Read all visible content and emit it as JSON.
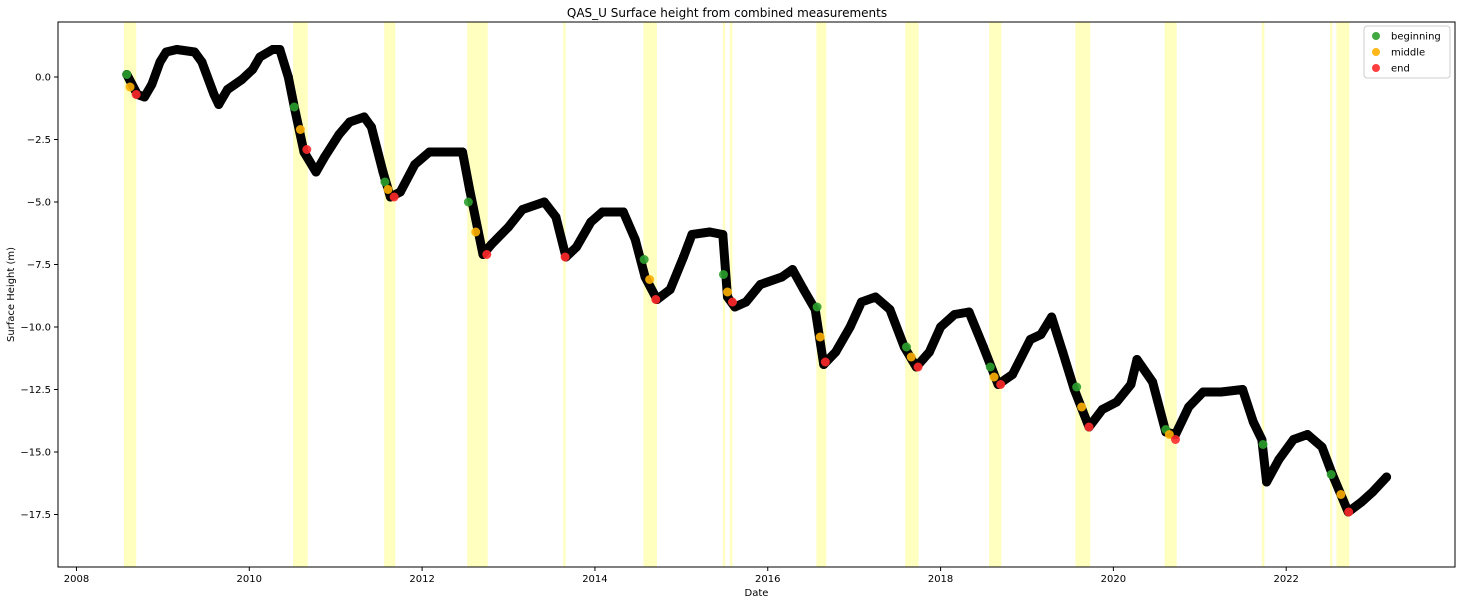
{
  "chart_data": {
    "type": "scatter",
    "title": "QAS_U Surface height from combined measurements",
    "xlabel": "Date",
    "ylabel": "Surface Height (m)",
    "xlim": [
      "2007-10-15",
      "2023-12-15"
    ],
    "ylim": [
      -19.6,
      2.2
    ],
    "x_ticks": [
      "2008",
      "2010",
      "2012",
      "2014",
      "2016",
      "2018",
      "2020",
      "2022"
    ],
    "y_ticks": [
      0.0,
      -2.5,
      -5.0,
      -7.5,
      -10.0,
      -12.5,
      -15.0,
      -17.5
    ],
    "y_tick_labels": [
      "0.0",
      "−2.5",
      "−5.0",
      "−7.5",
      "−10.0",
      "−12.5",
      "−15.0",
      "−17.5"
    ],
    "grid": false,
    "legend_position": "top-right",
    "legend": [
      {
        "name": "beginning",
        "color": "#2ca02c"
      },
      {
        "name": "middle",
        "color": "#ffb000"
      },
      {
        "name": "end",
        "color": "#ff2a2a"
      }
    ],
    "colors": {
      "measurements": "#000000",
      "melt_season_band": "#ffffc0",
      "beginning": "#2ca02c",
      "middle": "#ffb000",
      "end": "#ff2a2a"
    },
    "melt_season_bands": [
      [
        "2008-07-20",
        "2008-09-10"
      ],
      [
        "2010-07-05",
        "2010-09-05"
      ],
      [
        "2011-07-25",
        "2011-09-10"
      ],
      [
        "2012-07-10",
        "2012-10-05"
      ],
      [
        "2013-08-20",
        "2013-08-30"
      ],
      [
        "2014-07-25",
        "2014-09-20"
      ],
      [
        "2015-06-25",
        "2015-07-05"
      ],
      [
        "2015-07-25",
        "2015-08-05"
      ],
      [
        "2016-07-25",
        "2016-09-05"
      ],
      [
        "2017-08-05",
        "2017-09-30"
      ],
      [
        "2018-07-25",
        "2018-09-15"
      ],
      [
        "2019-07-25",
        "2019-09-25"
      ],
      [
        "2020-08-05",
        "2020-09-25"
      ],
      [
        "2021-09-20",
        "2021-10-01"
      ],
      [
        "2022-07-05",
        "2022-07-15"
      ],
      [
        "2022-08-01",
        "2022-09-25"
      ]
    ],
    "series": [
      {
        "name": "measurements",
        "points": [
          [
            "2008-08-01",
            0.1
          ],
          [
            "2008-09-15",
            -0.7
          ],
          [
            "2008-10-15",
            -0.8
          ],
          [
            "2008-11-15",
            -0.3
          ],
          [
            "2008-12-20",
            0.6
          ],
          [
            "2009-01-15",
            1.0
          ],
          [
            "2009-03-01",
            1.1
          ],
          [
            "2009-05-15",
            1.0
          ],
          [
            "2009-06-15",
            0.6
          ],
          [
            "2009-08-05",
            -0.7
          ],
          [
            "2009-08-25",
            -1.1
          ],
          [
            "2009-10-01",
            -0.5
          ],
          [
            "2009-12-01",
            -0.1
          ],
          [
            "2010-01-15",
            0.3
          ],
          [
            "2010-02-15",
            0.8
          ],
          [
            "2010-04-10",
            1.1
          ],
          [
            "2010-05-10",
            1.1
          ],
          [
            "2010-06-15",
            0.0
          ],
          [
            "2010-07-10",
            -1.2
          ],
          [
            "2010-08-20",
            -3.0
          ],
          [
            "2010-10-10",
            -3.8
          ],
          [
            "2010-11-15",
            -3.2
          ],
          [
            "2011-01-15",
            -2.3
          ],
          [
            "2011-03-01",
            -1.8
          ],
          [
            "2011-05-01",
            -1.6
          ],
          [
            "2011-06-01",
            -2.0
          ],
          [
            "2011-07-20",
            -3.8
          ],
          [
            "2011-08-20",
            -4.8
          ],
          [
            "2011-10-01",
            -4.6
          ],
          [
            "2011-12-01",
            -3.5
          ],
          [
            "2012-02-01",
            -3.0
          ],
          [
            "2012-05-01",
            -3.0
          ],
          [
            "2012-06-20",
            -3.0
          ],
          [
            "2012-07-20",
            -4.5
          ],
          [
            "2012-09-15",
            -7.1
          ],
          [
            "2012-10-20",
            -6.7
          ],
          [
            "2013-01-01",
            -6.0
          ],
          [
            "2013-03-01",
            -5.3
          ],
          [
            "2013-06-01",
            -5.0
          ],
          [
            "2013-07-20",
            -5.6
          ],
          [
            "2013-09-01",
            -7.2
          ],
          [
            "2013-10-15",
            -6.8
          ],
          [
            "2013-12-15",
            -5.8
          ],
          [
            "2014-02-01",
            -5.4
          ],
          [
            "2014-05-01",
            -5.4
          ],
          [
            "2014-06-20",
            -6.5
          ],
          [
            "2014-08-01",
            -8.0
          ],
          [
            "2014-09-20",
            -8.9
          ],
          [
            "2014-11-15",
            -8.5
          ],
          [
            "2015-01-10",
            -7.2
          ],
          [
            "2015-02-15",
            -6.3
          ],
          [
            "2015-05-01",
            -6.2
          ],
          [
            "2015-06-25",
            -6.3
          ],
          [
            "2015-07-15",
            -8.8
          ],
          [
            "2015-08-15",
            -9.2
          ],
          [
            "2015-10-01",
            -9.0
          ],
          [
            "2015-12-01",
            -8.3
          ],
          [
            "2016-03-01",
            -8.0
          ],
          [
            "2016-04-15",
            -7.7
          ],
          [
            "2016-06-01",
            -8.5
          ],
          [
            "2016-07-20",
            -9.3
          ],
          [
            "2016-08-25",
            -11.5
          ],
          [
            "2016-10-15",
            -11.0
          ],
          [
            "2016-12-15",
            -10.0
          ],
          [
            "2017-02-01",
            -9.0
          ],
          [
            "2017-04-01",
            -8.8
          ],
          [
            "2017-06-01",
            -9.3
          ],
          [
            "2017-08-01",
            -10.8
          ],
          [
            "2017-09-20",
            -11.6
          ],
          [
            "2017-11-15",
            -11.0
          ],
          [
            "2018-01-01",
            -10.0
          ],
          [
            "2018-03-01",
            -9.5
          ],
          [
            "2018-05-01",
            -9.4
          ],
          [
            "2018-07-01",
            -10.8
          ],
          [
            "2018-09-01",
            -12.3
          ],
          [
            "2018-11-01",
            -11.9
          ],
          [
            "2019-01-15",
            -10.5
          ],
          [
            "2019-03-01",
            -10.3
          ],
          [
            "2019-04-15",
            -9.6
          ],
          [
            "2019-06-01",
            -11.0
          ],
          [
            "2019-07-20",
            -12.5
          ],
          [
            "2019-09-20",
            -14.0
          ],
          [
            "2019-11-15",
            -13.3
          ],
          [
            "2020-01-15",
            -13.0
          ],
          [
            "2020-03-15",
            -12.3
          ],
          [
            "2020-04-10",
            -11.3
          ],
          [
            "2020-06-15",
            -12.2
          ],
          [
            "2020-08-10",
            -14.2
          ],
          [
            "2020-09-20",
            -14.3
          ],
          [
            "2020-11-15",
            -13.2
          ],
          [
            "2021-01-15",
            -12.6
          ],
          [
            "2021-04-01",
            -12.6
          ],
          [
            "2021-07-01",
            -12.5
          ],
          [
            "2021-08-15",
            -13.8
          ],
          [
            "2021-09-20",
            -14.5
          ],
          [
            "2021-10-10",
            -16.2
          ],
          [
            "2021-12-01",
            -15.3
          ],
          [
            "2022-02-01",
            -14.5
          ],
          [
            "2022-04-01",
            -14.3
          ],
          [
            "2022-06-01",
            -14.8
          ],
          [
            "2022-07-15",
            -15.9
          ],
          [
            "2022-09-20",
            -17.4
          ],
          [
            "2022-11-15",
            -17.0
          ],
          [
            "2023-01-01",
            -16.6
          ],
          [
            "2023-03-01",
            -16.0
          ]
        ]
      },
      {
        "name": "beginning",
        "points": [
          [
            "2008-08-01",
            0.1
          ],
          [
            "2010-07-10",
            -1.2
          ],
          [
            "2011-07-28",
            -4.2
          ],
          [
            "2012-07-15",
            -5.0
          ],
          [
            "2014-07-28",
            -7.3
          ],
          [
            "2015-06-28",
            -7.9
          ],
          [
            "2016-07-28",
            -9.2
          ],
          [
            "2017-08-10",
            -10.8
          ],
          [
            "2018-07-30",
            -11.6
          ],
          [
            "2019-07-30",
            -12.4
          ],
          [
            "2020-08-10",
            -14.1
          ],
          [
            "2021-09-25",
            -14.7
          ],
          [
            "2022-07-10",
            -15.9
          ]
        ]
      },
      {
        "name": "middle",
        "points": [
          [
            "2008-08-15",
            -0.4
          ],
          [
            "2010-08-05",
            -2.1
          ],
          [
            "2011-08-10",
            -4.5
          ],
          [
            "2012-08-15",
            -6.2
          ],
          [
            "2014-08-20",
            -8.1
          ],
          [
            "2015-07-15",
            -8.6
          ],
          [
            "2016-08-10",
            -10.4
          ],
          [
            "2017-08-30",
            -11.2
          ],
          [
            "2018-08-15",
            -12.0
          ],
          [
            "2019-08-20",
            -13.2
          ],
          [
            "2020-08-25",
            -14.3
          ],
          [
            "2022-08-20",
            -16.7
          ]
        ]
      },
      {
        "name": "end",
        "points": [
          [
            "2008-09-10",
            -0.7
          ],
          [
            "2010-09-01",
            -2.9
          ],
          [
            "2011-09-05",
            -4.8
          ],
          [
            "2012-10-01",
            -7.1
          ],
          [
            "2013-08-28",
            -7.2
          ],
          [
            "2014-09-15",
            -8.9
          ],
          [
            "2015-08-05",
            -9.0
          ],
          [
            "2016-09-01",
            -11.4
          ],
          [
            "2017-09-28",
            -11.6
          ],
          [
            "2018-09-12",
            -12.3
          ],
          [
            "2019-09-20",
            -14.0
          ],
          [
            "2020-09-20",
            -14.5
          ],
          [
            "2022-09-22",
            -17.4
          ]
        ]
      }
    ]
  }
}
